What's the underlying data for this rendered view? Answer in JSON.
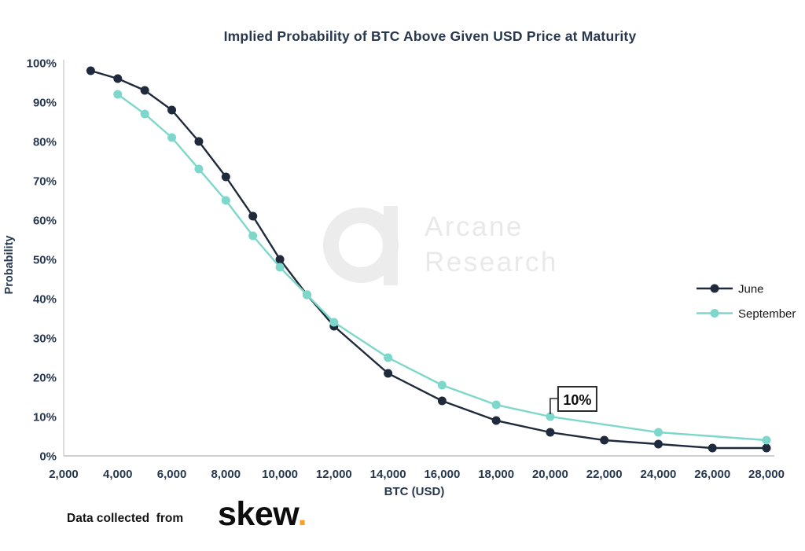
{
  "watermark": {
    "logo": "arcane-research-logo",
    "lines": [
      "Arcane",
      "Research"
    ]
  },
  "footer": {
    "prefix": "Data collected  from",
    "brand": "skew",
    "brand_dot": "."
  },
  "colors": {
    "june": "#1f2b3d",
    "september": "#7dd7cb",
    "text_navy": "#27374e",
    "axis_line": "#cfcfcf",
    "legend_text": "#161616",
    "annotation_border": "#2b2b2b",
    "annotation_text": "#0d0d0d",
    "watermark_gray": "#ececec",
    "skew_orange": "#f6a224"
  },
  "chart_data": {
    "type": "line",
    "title": "Implied Probability of BTC Above Given USD Price at Maturity",
    "xlabel": "BTC (USD)",
    "ylabel": "Probability",
    "xlim": [
      2000,
      28000
    ],
    "ylim": [
      0,
      100
    ],
    "grid": false,
    "legend_position": "right",
    "xticks": [
      {
        "v": 2000,
        "label": "2,000"
      },
      {
        "v": 4000,
        "label": "4,000"
      },
      {
        "v": 6000,
        "label": "6,000"
      },
      {
        "v": 8000,
        "label": "8,000"
      },
      {
        "v": 10000,
        "label": "10,000"
      },
      {
        "v": 12000,
        "label": "12,000"
      },
      {
        "v": 14000,
        "label": "14,000"
      },
      {
        "v": 16000,
        "label": "16,000"
      },
      {
        "v": 18000,
        "label": "18,000"
      },
      {
        "v": 20000,
        "label": "20,000"
      },
      {
        "v": 22000,
        "label": "22,000"
      },
      {
        "v": 24000,
        "label": "24,000"
      },
      {
        "v": 26000,
        "label": "26,000"
      },
      {
        "v": 28000,
        "label": "28,000"
      }
    ],
    "yticks": [
      {
        "v": 0,
        "label": "0%"
      },
      {
        "v": 10,
        "label": "10%"
      },
      {
        "v": 20,
        "label": "20%"
      },
      {
        "v": 30,
        "label": "30%"
      },
      {
        "v": 40,
        "label": "40%"
      },
      {
        "v": 50,
        "label": "50%"
      },
      {
        "v": 60,
        "label": "60%"
      },
      {
        "v": 70,
        "label": "70%"
      },
      {
        "v": 80,
        "label": "80%"
      },
      {
        "v": 90,
        "label": "90%"
      },
      {
        "v": 100,
        "label": "100%"
      }
    ],
    "series": [
      {
        "name": "June",
        "color": "#1f2b3d",
        "points": [
          [
            3000,
            98
          ],
          [
            4000,
            96
          ],
          [
            5000,
            93
          ],
          [
            6000,
            88
          ],
          [
            7000,
            80
          ],
          [
            8000,
            71
          ],
          [
            9000,
            61
          ],
          [
            10000,
            50
          ],
          [
            11000,
            41
          ],
          [
            12000,
            33
          ],
          [
            14000,
            21
          ],
          [
            16000,
            14
          ],
          [
            18000,
            9
          ],
          [
            20000,
            6
          ],
          [
            22000,
            4
          ],
          [
            24000,
            3
          ],
          [
            26000,
            2
          ],
          [
            28000,
            2
          ]
        ]
      },
      {
        "name": "September",
        "color": "#7dd7cb",
        "points": [
          [
            4000,
            92
          ],
          [
            5000,
            87
          ],
          [
            6000,
            81
          ],
          [
            7000,
            73
          ],
          [
            8000,
            65
          ],
          [
            9000,
            56
          ],
          [
            10000,
            48
          ],
          [
            11000,
            41
          ],
          [
            12000,
            34
          ],
          [
            14000,
            25
          ],
          [
            16000,
            18
          ],
          [
            18000,
            13
          ],
          [
            20000,
            10
          ],
          [
            24000,
            6
          ],
          [
            28000,
            4
          ]
        ]
      }
    ],
    "annotation": {
      "series": "September",
      "x": 20000,
      "y": 10,
      "label": "10%"
    }
  }
}
